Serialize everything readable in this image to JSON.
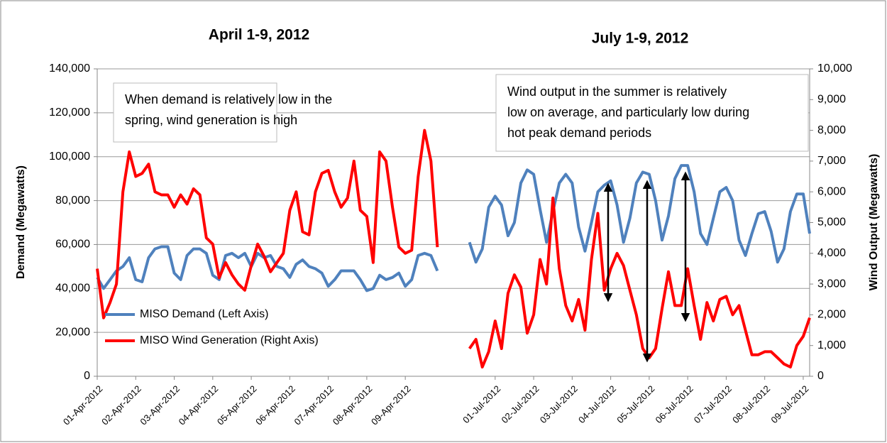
{
  "chart_data": {
    "type": "line",
    "panel_titles": [
      "April 1-9, 2012",
      "July 1-9, 2012"
    ],
    "y_label": "Demand (Megawatts)",
    "y2_label": "Wind Output (Megawatts)",
    "annotations": [
      [
        "When demand is relatively low in the",
        "spring, wind generation is high"
      ],
      [
        "Wind output in the summer is relatively",
        "low on average, and particularly low during",
        "hot peak demand periods"
      ]
    ],
    "legend": "lower left",
    "grid": true,
    "categories": [
      "01-Apr-2012",
      null,
      null,
      null,
      null,
      null,
      "02-Apr-2012",
      null,
      null,
      null,
      null,
      null,
      "03-Apr-2012",
      null,
      null,
      null,
      null,
      null,
      "04-Apr-2012",
      null,
      null,
      null,
      null,
      null,
      "05-Apr-2012",
      null,
      null,
      null,
      null,
      null,
      "06-Apr-2012",
      null,
      null,
      null,
      null,
      null,
      "07-Apr-2012",
      null,
      null,
      null,
      null,
      null,
      "08-Apr-2012",
      null,
      null,
      null,
      null,
      null,
      "09-Apr-2012",
      null,
      null,
      null,
      null,
      null,
      null,
      null,
      null,
      null,
      null,
      null,
      null,
      null,
      "01-Jul-2012",
      null,
      null,
      null,
      null,
      null,
      "02-Jul-2012",
      null,
      null,
      null,
      null,
      null,
      "03-Jul-2012",
      null,
      null,
      null,
      null,
      null,
      "04-Jul-2012",
      null,
      null,
      null,
      null,
      null,
      "05-Jul-2012",
      null,
      null,
      null,
      null,
      null,
      "06-Jul-2012",
      null,
      null,
      null,
      null,
      null,
      "07-Jul-2012",
      null,
      null,
      null,
      null,
      null,
      "08-Jul-2012",
      null,
      null,
      null,
      null,
      null,
      "09-Jul-2012",
      null
    ],
    "series": [
      {
        "name": "MISO Demand (Left Axis)",
        "color": "#4f81bd",
        "axis": "y",
        "values": [
          45000,
          40000,
          44000,
          48000,
          50000,
          54000,
          44000,
          43000,
          54000,
          58000,
          59000,
          59000,
          47000,
          44000,
          55000,
          58000,
          58000,
          56000,
          46000,
          44000,
          55000,
          56000,
          54000,
          56000,
          50000,
          56000,
          54000,
          55000,
          50000,
          49000,
          45000,
          51000,
          53000,
          50000,
          49000,
          47000,
          41000,
          44000,
          48000,
          48000,
          48000,
          44000,
          39000,
          40000,
          46000,
          44000,
          45000,
          47000,
          41000,
          44000,
          55000,
          56000,
          55000,
          48000,
          null,
          null,
          null,
          null,
          61000,
          52000,
          58000,
          77000,
          82000,
          78000,
          64000,
          70000,
          88000,
          94000,
          92000,
          76000,
          61000,
          75000,
          88000,
          92000,
          88000,
          68000,
          57000,
          70000,
          84000,
          87000,
          89000,
          78000,
          61000,
          72000,
          88000,
          93000,
          92000,
          80000,
          62000,
          73000,
          90000,
          96000,
          96000,
          84000,
          65000,
          60000,
          72000,
          84000,
          86000,
          80000,
          62000,
          55000,
          65000,
          74000,
          75000,
          66000,
          52000,
          58000,
          75000,
          83000,
          83000,
          65000
        ]
      },
      {
        "name": "MISO Wind Generation (Right Axis)",
        "color": "#ff0000",
        "axis": "y2",
        "values": [
          3500,
          1900,
          2400,
          3000,
          6000,
          7300,
          6500,
          6600,
          6900,
          6000,
          5900,
          5900,
          5500,
          5900,
          5600,
          6100,
          5900,
          4500,
          4300,
          3200,
          3700,
          3300,
          3000,
          2800,
          3600,
          4300,
          3900,
          3400,
          3700,
          4000,
          5400,
          6000,
          4700,
          4600,
          6000,
          6600,
          6700,
          6000,
          5500,
          5800,
          7000,
          5400,
          5200,
          3700,
          7300,
          7000,
          5500,
          4200,
          4000,
          4100,
          6500,
          8000,
          7000,
          4200,
          null,
          null,
          null,
          null,
          900,
          1200,
          300,
          800,
          1800,
          900,
          2700,
          3300,
          2900,
          1400,
          2000,
          3800,
          3000,
          5800,
          3500,
          2300,
          1800,
          2500,
          1500,
          3800,
          5300,
          2800,
          3500,
          4000,
          3600,
          2800,
          2000,
          900,
          600,
          900,
          2200,
          3400,
          2300,
          2300,
          3500,
          2300,
          1200,
          2400,
          1800,
          2500,
          2600,
          2000,
          2300,
          1500,
          700,
          700,
          800,
          800,
          600,
          400,
          300,
          1000,
          1300,
          1900
        ]
      }
    ],
    "ylim": [
      0,
      140000
    ],
    "yticks": [
      0,
      {
        "value": 20000,
        "label": "20,000"
      },
      {
        "value": 40000,
        "label": "40,000"
      },
      {
        "value": 60000,
        "label": "60,000"
      },
      {
        "value": 80000,
        "label": "80,000"
      },
      {
        "value": 100000,
        "label": "100,000"
      },
      {
        "value": 120000,
        "label": "120,000"
      },
      {
        "value": 140000,
        "label": "140,000"
      }
    ],
    "y2lim": [
      0,
      10000
    ],
    "y2ticks": [
      0,
      {
        "value": 1000,
        "label": "1,000"
      },
      {
        "value": 2000,
        "label": "2,000"
      },
      {
        "value": 3000,
        "label": "3,000"
      },
      {
        "value": 4000,
        "label": "4,000"
      },
      {
        "value": 5000,
        "label": "5,000"
      },
      {
        "value": 6000,
        "label": "6,000"
      },
      {
        "value": 7000,
        "label": "7,000"
      },
      {
        "value": 8000,
        "label": "8,000"
      },
      {
        "value": 9000,
        "label": "9,000"
      },
      {
        "value": 10000,
        "label": "10,000"
      }
    ]
  }
}
